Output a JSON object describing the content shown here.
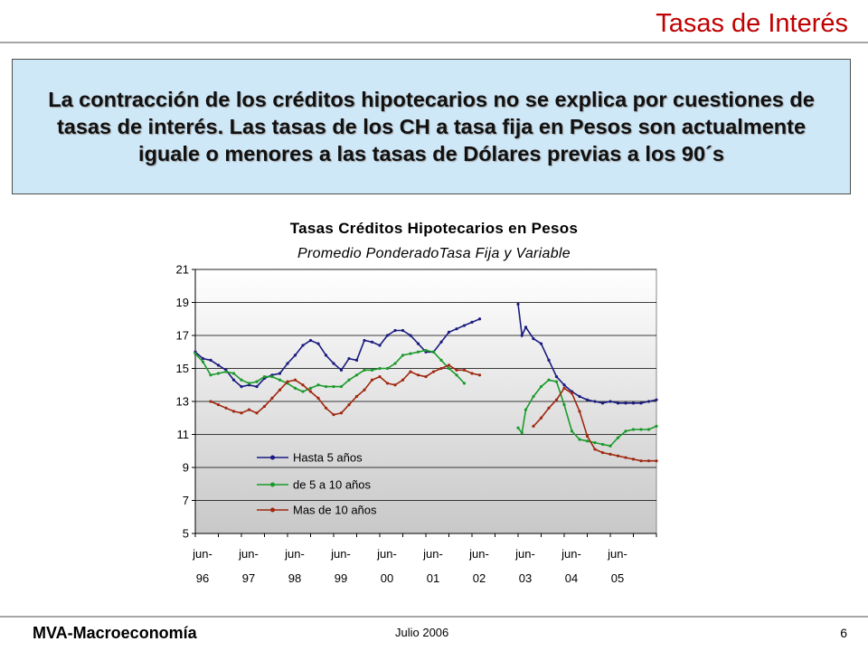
{
  "header": {
    "title": "Tasas de Interés"
  },
  "message": {
    "text": "La contracción de los créditos hipotecarios no se explica por cuestiones de tasas de interés. Las tasas de los CH a tasa fija en Pesos son actualmente iguale o menores a las tasas de Dólares previas a los 90´s"
  },
  "footer": {
    "left": "MVA-Macroeconomía",
    "center": "Julio 2006",
    "page": "6"
  },
  "colors": {
    "accent": "#c00000",
    "box_bg": "#cfe8f8"
  },
  "chart_data": {
    "type": "line",
    "title": "Tasas Créditos Hipotecarios en Pesos",
    "subtitle": "Promedio PonderadoTasa Fija y Variable",
    "xlabel": "",
    "ylabel": "",
    "ylim": [
      5,
      21
    ],
    "yticks": [
      5,
      7,
      9,
      11,
      13,
      15,
      17,
      19,
      21
    ],
    "xlim": [
      "1996-06",
      "2006-06"
    ],
    "xticks": [
      {
        "date": "1996-06",
        "line1": "jun-",
        "line2": "96"
      },
      {
        "date": "1997-06",
        "line1": "jun-",
        "line2": "97"
      },
      {
        "date": "1998-06",
        "line1": "jun-",
        "line2": "98"
      },
      {
        "date": "1999-06",
        "line1": "jun-",
        "line2": "99"
      },
      {
        "date": "2000-06",
        "line1": "jun-",
        "line2": "00"
      },
      {
        "date": "2001-06",
        "line1": "jun-",
        "line2": "01"
      },
      {
        "date": "2002-06",
        "line1": "jun-",
        "line2": "02"
      },
      {
        "date": "2003-06",
        "line1": "jun-",
        "line2": "03"
      },
      {
        "date": "2004-06",
        "line1": "jun-",
        "line2": "04"
      },
      {
        "date": "2005-06",
        "line1": "jun-",
        "line2": "05"
      }
    ],
    "grid": "horizontal",
    "legend_position": "bottom-left inside",
    "series": [
      {
        "name": "Hasta 5 años",
        "color": "#1a1a80",
        "segments": [
          [
            [
              "1996-06",
              16.0
            ],
            [
              "1996-08",
              15.6
            ],
            [
              "1996-10",
              15.5
            ],
            [
              "1996-12",
              15.2
            ],
            [
              "1997-02",
              14.9
            ],
            [
              "1997-04",
              14.3
            ],
            [
              "1997-06",
              13.9
            ],
            [
              "1997-08",
              14.0
            ],
            [
              "1997-10",
              13.9
            ],
            [
              "1997-12",
              14.4
            ],
            [
              "1998-02",
              14.6
            ],
            [
              "1998-04",
              14.7
            ],
            [
              "1998-06",
              15.3
            ],
            [
              "1998-08",
              15.8
            ],
            [
              "1998-10",
              16.4
            ],
            [
              "1998-12",
              16.7
            ],
            [
              "1999-02",
              16.5
            ],
            [
              "1999-04",
              15.8
            ],
            [
              "1999-06",
              15.3
            ],
            [
              "1999-08",
              14.9
            ],
            [
              "1999-10",
              15.6
            ],
            [
              "1999-12",
              15.5
            ],
            [
              "2000-02",
              16.7
            ],
            [
              "2000-04",
              16.6
            ],
            [
              "2000-06",
              16.4
            ],
            [
              "2000-08",
              17.0
            ],
            [
              "2000-10",
              17.3
            ],
            [
              "2000-12",
              17.3
            ],
            [
              "2001-02",
              17.0
            ],
            [
              "2001-04",
              16.5
            ],
            [
              "2001-06",
              16.0
            ],
            [
              "2001-08",
              16.0
            ],
            [
              "2001-10",
              16.6
            ],
            [
              "2001-12",
              17.2
            ],
            [
              "2002-02",
              17.4
            ],
            [
              "2002-04",
              17.6
            ],
            [
              "2002-06",
              17.8
            ],
            [
              "2002-08",
              18.0
            ]
          ],
          [
            [
              "2003-06",
              18.9
            ],
            [
              "2003-07",
              17.0
            ],
            [
              "2003-08",
              17.5
            ],
            [
              "2003-10",
              16.8
            ],
            [
              "2003-12",
              16.5
            ],
            [
              "2004-02",
              15.5
            ],
            [
              "2004-04",
              14.5
            ],
            [
              "2004-06",
              14.0
            ],
            [
              "2004-08",
              13.6
            ],
            [
              "2004-10",
              13.3
            ],
            [
              "2004-12",
              13.1
            ],
            [
              "2005-02",
              13.0
            ],
            [
              "2005-04",
              12.9
            ],
            [
              "2005-06",
              13.0
            ],
            [
              "2005-08",
              12.9
            ],
            [
              "2005-10",
              12.9
            ],
            [
              "2005-12",
              12.9
            ],
            [
              "2006-02",
              12.9
            ],
            [
              "2006-04",
              13.0
            ],
            [
              "2006-06",
              13.1
            ]
          ]
        ]
      },
      {
        "name": "de 5 a 10 años",
        "color": "#1a9a2a",
        "segments": [
          [
            [
              "1996-06",
              15.9
            ],
            [
              "1996-08",
              15.4
            ],
            [
              "1996-10",
              14.6
            ],
            [
              "1996-12",
              14.7
            ],
            [
              "1997-02",
              14.8
            ],
            [
              "1997-04",
              14.7
            ],
            [
              "1997-06",
              14.3
            ],
            [
              "1997-08",
              14.1
            ],
            [
              "1997-10",
              14.2
            ],
            [
              "1997-12",
              14.5
            ],
            [
              "1998-02",
              14.5
            ],
            [
              "1998-04",
              14.3
            ],
            [
              "1998-06",
              14.1
            ],
            [
              "1998-08",
              13.8
            ],
            [
              "1998-10",
              13.6
            ],
            [
              "1998-12",
              13.8
            ],
            [
              "1999-02",
              14.0
            ],
            [
              "1999-04",
              13.9
            ],
            [
              "1999-06",
              13.9
            ],
            [
              "1999-08",
              13.9
            ],
            [
              "1999-10",
              14.3
            ],
            [
              "1999-12",
              14.6
            ],
            [
              "2000-02",
              14.9
            ],
            [
              "2000-04",
              14.9
            ],
            [
              "2000-06",
              15.0
            ],
            [
              "2000-08",
              15.0
            ],
            [
              "2000-10",
              15.3
            ],
            [
              "2000-12",
              15.8
            ],
            [
              "2001-02",
              15.9
            ],
            [
              "2001-04",
              16.0
            ],
            [
              "2001-06",
              16.1
            ],
            [
              "2001-08",
              16.0
            ],
            [
              "2001-10",
              15.5
            ],
            [
              "2001-12",
              15.0
            ],
            [
              "2002-02",
              14.6
            ],
            [
              "2002-04",
              14.1
            ]
          ],
          [
            [
              "2003-06",
              11.4
            ],
            [
              "2003-07",
              11.1
            ],
            [
              "2003-08",
              12.5
            ],
            [
              "2003-10",
              13.3
            ],
            [
              "2003-12",
              13.9
            ],
            [
              "2004-02",
              14.3
            ],
            [
              "2004-04",
              14.2
            ],
            [
              "2004-06",
              12.8
            ],
            [
              "2004-08",
              11.2
            ],
            [
              "2004-10",
              10.7
            ],
            [
              "2004-12",
              10.6
            ],
            [
              "2005-02",
              10.5
            ],
            [
              "2005-04",
              10.4
            ],
            [
              "2005-06",
              10.3
            ],
            [
              "2005-08",
              10.8
            ],
            [
              "2005-10",
              11.2
            ],
            [
              "2005-12",
              11.3
            ],
            [
              "2006-02",
              11.3
            ],
            [
              "2006-04",
              11.3
            ],
            [
              "2006-06",
              11.5
            ]
          ]
        ]
      },
      {
        "name": "Mas de 10 años",
        "color": "#a02810",
        "segments": [
          [
            [
              "1996-10",
              13.0
            ],
            [
              "1996-12",
              12.8
            ],
            [
              "1997-02",
              12.6
            ],
            [
              "1997-04",
              12.4
            ],
            [
              "1997-06",
              12.3
            ],
            [
              "1997-08",
              12.5
            ],
            [
              "1997-10",
              12.3
            ],
            [
              "1997-12",
              12.7
            ],
            [
              "1998-02",
              13.2
            ],
            [
              "1998-04",
              13.7
            ],
            [
              "1998-06",
              14.2
            ],
            [
              "1998-08",
              14.3
            ],
            [
              "1998-10",
              14.0
            ],
            [
              "1998-12",
              13.6
            ],
            [
              "1999-02",
              13.2
            ],
            [
              "1999-04",
              12.6
            ],
            [
              "1999-06",
              12.2
            ],
            [
              "1999-08",
              12.3
            ],
            [
              "1999-10",
              12.8
            ],
            [
              "1999-12",
              13.3
            ],
            [
              "2000-02",
              13.7
            ],
            [
              "2000-04",
              14.3
            ],
            [
              "2000-06",
              14.5
            ],
            [
              "2000-08",
              14.1
            ],
            [
              "2000-10",
              14.0
            ],
            [
              "2000-12",
              14.3
            ],
            [
              "2001-02",
              14.8
            ],
            [
              "2001-04",
              14.6
            ],
            [
              "2001-06",
              14.5
            ],
            [
              "2001-08",
              14.8
            ],
            [
              "2001-10",
              15.0
            ],
            [
              "2001-12",
              15.2
            ],
            [
              "2002-02",
              14.9
            ],
            [
              "2002-04",
              14.9
            ],
            [
              "2002-06",
              14.7
            ],
            [
              "2002-08",
              14.6
            ]
          ],
          [
            [
              "2003-10",
              11.5
            ],
            [
              "2003-12",
              12.0
            ],
            [
              "2004-02",
              12.6
            ],
            [
              "2004-04",
              13.1
            ],
            [
              "2004-06",
              13.8
            ],
            [
              "2004-08",
              13.5
            ],
            [
              "2004-10",
              12.4
            ],
            [
              "2004-12",
              10.9
            ],
            [
              "2005-02",
              10.1
            ],
            [
              "2005-04",
              9.9
            ],
            [
              "2005-06",
              9.8
            ],
            [
              "2005-08",
              9.7
            ],
            [
              "2005-10",
              9.6
            ],
            [
              "2005-12",
              9.5
            ],
            [
              "2006-02",
              9.4
            ],
            [
              "2006-04",
              9.4
            ],
            [
              "2006-06",
              9.4
            ]
          ]
        ]
      }
    ]
  }
}
